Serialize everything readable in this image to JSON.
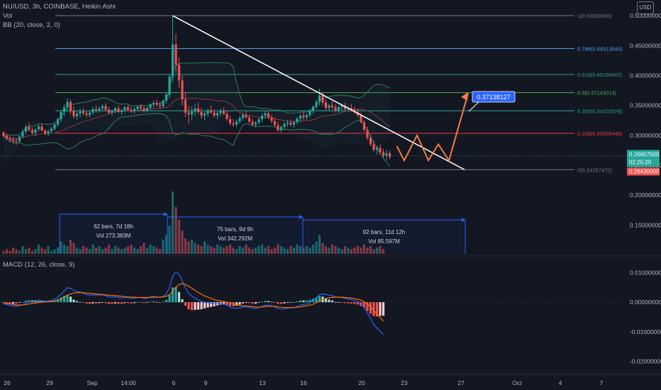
{
  "header": {
    "symbol_line": "NU/USD, 3h, COINBASE, Heikin Ashi",
    "vol_label": "Vol",
    "bb_label": "BB (20, close, 2, 0)",
    "macd_label": "MACD (12, 26, close, 9)",
    "currency_button": "USD"
  },
  "colors": {
    "background": "#131722",
    "up": "#26a69a",
    "down": "#ef5350",
    "bollinger": "#2e7d5e",
    "trendline": "#ffffff",
    "projection": "#f57b45",
    "macd_line": "#2962ff",
    "signal_line": "#ff6d00",
    "measure": "#2962ff",
    "target_label_bg": "#2962ff",
    "price_label_bg": "#26a69a",
    "low_label_bg": "#ef5350"
  },
  "chart_data": [
    {
      "type": "candlestick",
      "name": "price",
      "style": "Heikin Ashi",
      "ylim": [
        0.135,
        0.505
      ],
      "x_ticks": [
        "26",
        "29",
        "Sep",
        "14:00",
        "6",
        "9",
        "13",
        "16",
        "20",
        "23",
        "27",
        "Oct",
        "4",
        "7"
      ],
      "y_ticks": [
        "0.50000000",
        "0.45000000",
        "0.40000000",
        "0.35000000",
        "0.30000000",
        "0.25000000",
        "0.20000000",
        "0.15000000"
      ],
      "ohlc": [
        [
          0.305,
          0.307,
          0.297,
          0.299
        ],
        [
          0.299,
          0.303,
          0.292,
          0.295
        ],
        [
          0.295,
          0.299,
          0.288,
          0.293
        ],
        [
          0.293,
          0.297,
          0.286,
          0.291
        ],
        [
          0.291,
          0.296,
          0.285,
          0.29
        ],
        [
          0.29,
          0.3,
          0.287,
          0.298
        ],
        [
          0.298,
          0.309,
          0.295,
          0.306
        ],
        [
          0.306,
          0.318,
          0.302,
          0.314
        ],
        [
          0.314,
          0.321,
          0.306,
          0.309
        ],
        [
          0.309,
          0.313,
          0.301,
          0.304
        ],
        [
          0.304,
          0.312,
          0.299,
          0.31
        ],
        [
          0.31,
          0.318,
          0.306,
          0.315
        ],
        [
          0.315,
          0.32,
          0.306,
          0.308
        ],
        [
          0.308,
          0.311,
          0.3,
          0.303
        ],
        [
          0.303,
          0.31,
          0.299,
          0.307
        ],
        [
          0.307,
          0.314,
          0.303,
          0.311
        ],
        [
          0.311,
          0.32,
          0.308,
          0.318
        ],
        [
          0.318,
          0.33,
          0.315,
          0.327
        ],
        [
          0.327,
          0.342,
          0.322,
          0.339
        ],
        [
          0.339,
          0.352,
          0.332,
          0.347
        ],
        [
          0.347,
          0.362,
          0.34,
          0.356
        ],
        [
          0.356,
          0.36,
          0.335,
          0.341
        ],
        [
          0.341,
          0.348,
          0.328,
          0.332
        ],
        [
          0.332,
          0.34,
          0.326,
          0.336
        ],
        [
          0.336,
          0.344,
          0.33,
          0.34
        ],
        [
          0.34,
          0.346,
          0.333,
          0.337
        ],
        [
          0.337,
          0.342,
          0.33,
          0.334
        ],
        [
          0.334,
          0.341,
          0.33,
          0.338
        ],
        [
          0.338,
          0.347,
          0.335,
          0.344
        ],
        [
          0.344,
          0.35,
          0.338,
          0.342
        ],
        [
          0.342,
          0.348,
          0.337,
          0.345
        ],
        [
          0.345,
          0.352,
          0.34,
          0.349
        ],
        [
          0.349,
          0.354,
          0.34,
          0.343
        ],
        [
          0.343,
          0.347,
          0.335,
          0.338
        ],
        [
          0.338,
          0.343,
          0.333,
          0.341
        ],
        [
          0.341,
          0.348,
          0.337,
          0.345
        ],
        [
          0.345,
          0.35,
          0.337,
          0.339
        ],
        [
          0.339,
          0.344,
          0.334,
          0.342
        ],
        [
          0.342,
          0.349,
          0.338,
          0.347
        ],
        [
          0.347,
          0.351,
          0.34,
          0.343
        ],
        [
          0.343,
          0.348,
          0.337,
          0.34
        ],
        [
          0.34,
          0.346,
          0.336,
          0.344
        ],
        [
          0.344,
          0.35,
          0.341,
          0.348
        ],
        [
          0.348,
          0.353,
          0.342,
          0.345
        ],
        [
          0.345,
          0.349,
          0.338,
          0.341
        ],
        [
          0.341,
          0.347,
          0.338,
          0.346
        ],
        [
          0.346,
          0.354,
          0.343,
          0.352
        ],
        [
          0.352,
          0.358,
          0.346,
          0.354
        ],
        [
          0.354,
          0.36,
          0.348,
          0.351
        ],
        [
          0.351,
          0.356,
          0.345,
          0.349
        ],
        [
          0.349,
          0.36,
          0.346,
          0.358
        ],
        [
          0.358,
          0.372,
          0.353,
          0.368
        ],
        [
          0.368,
          0.402,
          0.362,
          0.398
        ],
        [
          0.398,
          0.5,
          0.39,
          0.452
        ],
        [
          0.452,
          0.47,
          0.405,
          0.418
        ],
        [
          0.418,
          0.43,
          0.38,
          0.392
        ],
        [
          0.392,
          0.4,
          0.35,
          0.36
        ],
        [
          0.36,
          0.372,
          0.33,
          0.338
        ],
        [
          0.338,
          0.35,
          0.32,
          0.335
        ],
        [
          0.335,
          0.348,
          0.325,
          0.34
        ],
        [
          0.34,
          0.352,
          0.332,
          0.345
        ],
        [
          0.345,
          0.355,
          0.336,
          0.339
        ],
        [
          0.339,
          0.346,
          0.328,
          0.333
        ],
        [
          0.333,
          0.34,
          0.325,
          0.336
        ],
        [
          0.336,
          0.345,
          0.331,
          0.342
        ],
        [
          0.342,
          0.35,
          0.336,
          0.338
        ],
        [
          0.338,
          0.344,
          0.33,
          0.333
        ],
        [
          0.333,
          0.34,
          0.327,
          0.337
        ],
        [
          0.337,
          0.345,
          0.332,
          0.341
        ],
        [
          0.341,
          0.347,
          0.334,
          0.336
        ],
        [
          0.336,
          0.342,
          0.324,
          0.327
        ],
        [
          0.327,
          0.333,
          0.316,
          0.32
        ],
        [
          0.32,
          0.328,
          0.314,
          0.318
        ],
        [
          0.318,
          0.327,
          0.314,
          0.323
        ],
        [
          0.323,
          0.333,
          0.319,
          0.329
        ],
        [
          0.329,
          0.338,
          0.324,
          0.334
        ],
        [
          0.334,
          0.341,
          0.328,
          0.33
        ],
        [
          0.33,
          0.334,
          0.32,
          0.323
        ],
        [
          0.323,
          0.328,
          0.315,
          0.318
        ],
        [
          0.318,
          0.324,
          0.313,
          0.321
        ],
        [
          0.321,
          0.33,
          0.318,
          0.327
        ],
        [
          0.327,
          0.336,
          0.322,
          0.333
        ],
        [
          0.333,
          0.341,
          0.328,
          0.337
        ],
        [
          0.337,
          0.342,
          0.327,
          0.33
        ],
        [
          0.33,
          0.335,
          0.32,
          0.324
        ],
        [
          0.324,
          0.329,
          0.314,
          0.317
        ],
        [
          0.317,
          0.323,
          0.306,
          0.309
        ],
        [
          0.309,
          0.317,
          0.305,
          0.314
        ],
        [
          0.314,
          0.322,
          0.31,
          0.319
        ],
        [
          0.319,
          0.326,
          0.314,
          0.321
        ],
        [
          0.321,
          0.327,
          0.315,
          0.318
        ],
        [
          0.318,
          0.324,
          0.313,
          0.322
        ],
        [
          0.322,
          0.331,
          0.318,
          0.328
        ],
        [
          0.328,
          0.336,
          0.322,
          0.333
        ],
        [
          0.333,
          0.34,
          0.326,
          0.33
        ],
        [
          0.33,
          0.336,
          0.325,
          0.334
        ],
        [
          0.334,
          0.343,
          0.33,
          0.341
        ],
        [
          0.341,
          0.35,
          0.336,
          0.348
        ],
        [
          0.348,
          0.36,
          0.344,
          0.356
        ],
        [
          0.356,
          0.378,
          0.35,
          0.367
        ],
        [
          0.367,
          0.372,
          0.35,
          0.355
        ],
        [
          0.355,
          0.36,
          0.342,
          0.346
        ],
        [
          0.346,
          0.353,
          0.34,
          0.35
        ],
        [
          0.35,
          0.357,
          0.344,
          0.347
        ],
        [
          0.347,
          0.352,
          0.338,
          0.342
        ],
        [
          0.342,
          0.35,
          0.338,
          0.347
        ],
        [
          0.347,
          0.354,
          0.342,
          0.35
        ],
        [
          0.35,
          0.355,
          0.341,
          0.344
        ],
        [
          0.344,
          0.35,
          0.339,
          0.346
        ],
        [
          0.346,
          0.352,
          0.34,
          0.343
        ],
        [
          0.343,
          0.348,
          0.336,
          0.339
        ],
        [
          0.339,
          0.344,
          0.331,
          0.334
        ],
        [
          0.334,
          0.338,
          0.32,
          0.322
        ],
        [
          0.322,
          0.326,
          0.306,
          0.309
        ],
        [
          0.309,
          0.314,
          0.292,
          0.296
        ],
        [
          0.296,
          0.301,
          0.282,
          0.285
        ],
        [
          0.285,
          0.291,
          0.272,
          0.276
        ],
        [
          0.276,
          0.283,
          0.268,
          0.279
        ],
        [
          0.279,
          0.285,
          0.268,
          0.272
        ],
        [
          0.272,
          0.277,
          0.262,
          0.266
        ],
        [
          0.266,
          0.276,
          0.258,
          0.27
        ],
        [
          0.27,
          0.274,
          0.26,
          0.264
        ]
      ],
      "fib_levels": [
        {
          "label": "1(0.50028556)",
          "value": 0.50028556,
          "color": "#787b86"
        },
        {
          "label": "0.786(0.44513544)",
          "value": 0.44513544,
          "color": "#4f9ee8"
        },
        {
          "label": "0.618(0.40184002)",
          "value": 0.40184002,
          "color": "#2f9e8f"
        },
        {
          "label": "0.5(0.37143014)",
          "value": 0.37143014,
          "color": "#4caf50"
        },
        {
          "label": "0.382(0.34102026)",
          "value": 0.34102026,
          "color": "#26a69a"
        },
        {
          "label": "0.236(0.30339448)",
          "value": 0.30339448,
          "color": "#f23645"
        },
        {
          "label": "0(0.24257472)",
          "value": 0.24257472,
          "color": "#787b86"
        }
      ],
      "trendline": [
        [
          0.5,
          0
        ],
        [
          0.2426,
          1
        ]
      ],
      "projection_path": [
        0.282,
        0.258,
        0.3,
        0.258,
        0.285,
        0.258,
        0.37
      ],
      "target_label": "0.37138127",
      "current_price": "0.26607500",
      "countdown": "02:25:20",
      "low_price": "0.26430000"
    },
    {
      "type": "bar",
      "name": "volume",
      "values": [
        2,
        3,
        2,
        4,
        3,
        2,
        5,
        3,
        4,
        2,
        3,
        6,
        4,
        3,
        5,
        2,
        3,
        4,
        8,
        6,
        5,
        9,
        7,
        4,
        3,
        5,
        4,
        3,
        6,
        4,
        5,
        3,
        4,
        6,
        3,
        5,
        4,
        3,
        4,
        5,
        6,
        4,
        3,
        5,
        7,
        4,
        6,
        5,
        4,
        3,
        9,
        12,
        18,
        40,
        30,
        22,
        15,
        10,
        8,
        9,
        7,
        6,
        5,
        8,
        6,
        5,
        4,
        6,
        5,
        4,
        5,
        6,
        4,
        3,
        5,
        4,
        6,
        4,
        3,
        4,
        5,
        6,
        4,
        5,
        3,
        4,
        6,
        5,
        4,
        3,
        5,
        4,
        6,
        5,
        4,
        5,
        4,
        6,
        8,
        12,
        7,
        5,
        4,
        6,
        5,
        4,
        3,
        5,
        4,
        3,
        4,
        5,
        4,
        6,
        4,
        5,
        3,
        4,
        5,
        3
      ],
      "measurements": [
        {
          "line1": "62 bars, 7d 18h",
          "line2": "Vol 273.383M"
        },
        {
          "line1": "75 bars, 9d 9h",
          "line2": "Vol 342.292M"
        },
        {
          "line1": "92 bars, 11d 12h",
          "line2": "Vol 85.597M"
        }
      ]
    },
    {
      "type": "line",
      "name": "MACD (12, 26, close, 9)",
      "ylim": [
        -0.0235,
        0.0135
      ],
      "y_ticks": [
        "0.01000000",
        "0.00000000",
        "-0.01000000",
        "-0.02000000"
      ],
      "macd": [
        -0.0005,
        -0.0008,
        -0.0011,
        -0.0013,
        -0.0014,
        -0.0012,
        -0.0008,
        -0.0003,
        0.0001,
        0.0002,
        0.0003,
        0.0006,
        0.0005,
        0.0003,
        0.0004,
        0.0006,
        0.001,
        0.0017,
        0.0027,
        0.0038,
        0.0049,
        0.0047,
        0.004,
        0.0036,
        0.0034,
        0.003,
        0.0026,
        0.0024,
        0.0025,
        0.0024,
        0.0024,
        0.0025,
        0.0022,
        0.0018,
        0.0017,
        0.0018,
        0.0015,
        0.0014,
        0.0016,
        0.0015,
        0.0013,
        0.0014,
        0.0016,
        0.0016,
        0.0013,
        0.0014,
        0.0018,
        0.002,
        0.0018,
        0.0016,
        0.002,
        0.0028,
        0.005,
        0.0088,
        0.0103,
        0.0095,
        0.0073,
        0.0048,
        0.003,
        0.002,
        0.0014,
        0.0008,
        0.0003,
        0.0,
        -0.0001,
        -0.0003,
        -0.0005,
        -0.0005,
        -0.0004,
        -0.0006,
        -0.001,
        -0.0016,
        -0.002,
        -0.0021,
        -0.0019,
        -0.0016,
        -0.0015,
        -0.0017,
        -0.002,
        -0.0021,
        -0.0018,
        -0.0014,
        -0.001,
        -0.001,
        -0.0012,
        -0.0016,
        -0.0022,
        -0.0023,
        -0.0022,
        -0.002,
        -0.0019,
        -0.0018,
        -0.0014,
        -0.001,
        -0.0008,
        -0.0006,
        -0.0002,
        0.0005,
        0.0015,
        0.0026,
        0.0028,
        0.0026,
        0.0024,
        0.0022,
        0.0018,
        0.0017,
        0.0016,
        0.0013,
        0.0011,
        0.0009,
        0.0006,
        0.0002,
        -0.0006,
        -0.0018,
        -0.0035,
        -0.0055,
        -0.0075,
        -0.0088,
        -0.0098,
        -0.011
      ],
      "signal": [
        -0.0003,
        -0.0004,
        -0.0006,
        -0.0008,
        -0.0009,
        -0.001,
        -0.0009,
        -0.0008,
        -0.0006,
        -0.0004,
        -0.0003,
        -0.0001,
        0.0,
        0.0001,
        0.0002,
        0.0003,
        0.0004,
        0.0007,
        0.0011,
        0.0016,
        0.0023,
        0.0028,
        0.0031,
        0.0032,
        0.0033,
        0.0032,
        0.0031,
        0.003,
        0.0029,
        0.0028,
        0.0027,
        0.0026,
        0.0025,
        0.0024,
        0.0023,
        0.0022,
        0.0021,
        0.002,
        0.0019,
        0.0018,
        0.0017,
        0.0017,
        0.0016,
        0.0016,
        0.0016,
        0.0016,
        0.0016,
        0.0017,
        0.0017,
        0.0017,
        0.0018,
        0.002,
        0.0026,
        0.0038,
        0.0051,
        0.006,
        0.0063,
        0.006,
        0.0054,
        0.0047,
        0.004,
        0.0033,
        0.0027,
        0.0021,
        0.0017,
        0.0013,
        0.0009,
        0.0006,
        0.0004,
        0.0002,
        0.0,
        -0.0003,
        -0.0006,
        -0.0009,
        -0.0011,
        -0.0012,
        -0.0013,
        -0.0014,
        -0.0015,
        -0.0016,
        -0.0017,
        -0.0016,
        -0.0015,
        -0.0014,
        -0.0014,
        -0.0014,
        -0.0016,
        -0.0017,
        -0.0018,
        -0.0018,
        -0.0018,
        -0.0018,
        -0.0017,
        -0.0016,
        -0.0014,
        -0.0012,
        -0.001,
        -0.0007,
        -0.0002,
        0.0004,
        0.0009,
        0.0012,
        0.0015,
        0.0016,
        0.0017,
        0.0017,
        0.0017,
        0.0016,
        0.0015,
        0.0014,
        0.0012,
        0.001,
        0.0007,
        0.0001,
        -0.0006,
        -0.0016,
        -0.0028,
        -0.004,
        -0.0052,
        -0.0064
      ]
    }
  ]
}
